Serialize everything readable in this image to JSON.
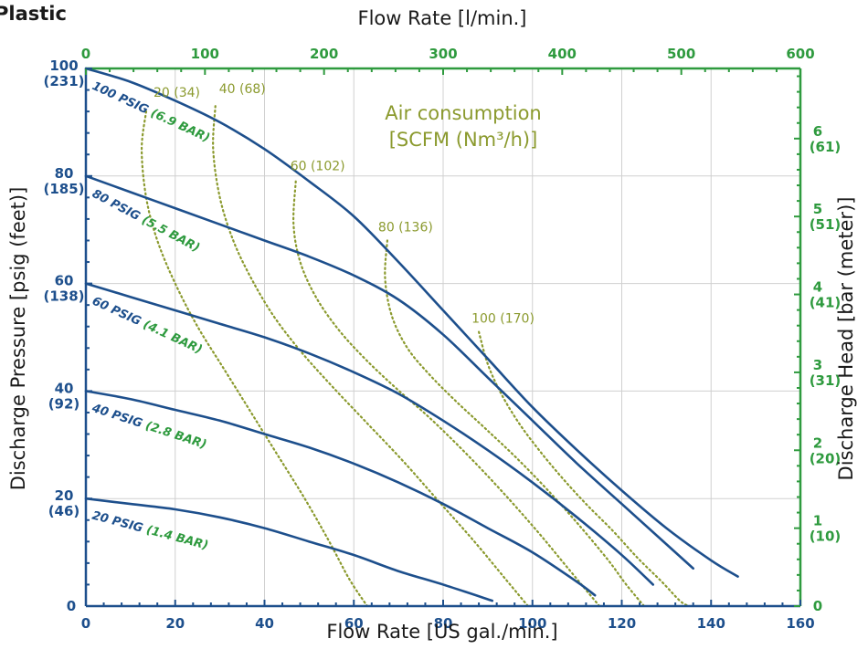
{
  "chart_data": {
    "type": "line",
    "title": "Plastic",
    "x_bottom": {
      "label": "Flow Rate [US gal./min.]",
      "range": [
        0,
        160
      ],
      "ticks": [
        0,
        20,
        40,
        60,
        80,
        100,
        120,
        140,
        160
      ]
    },
    "x_top": {
      "label": "Flow Rate  [l/min.]",
      "range": [
        0,
        600
      ],
      "ticks": [
        0,
        100,
        200,
        300,
        400,
        500,
        600
      ]
    },
    "y_left": {
      "label": "Discharge Pressure [psig (feet)]",
      "range": [
        0,
        100
      ],
      "ticks": [
        {
          "value": 0,
          "label": "0",
          "sub": ""
        },
        {
          "value": 20,
          "label": "20",
          "sub": "(46)"
        },
        {
          "value": 40,
          "label": "40",
          "sub": "(92)"
        },
        {
          "value": 60,
          "label": "60",
          "sub": "(138)"
        },
        {
          "value": 80,
          "label": "80",
          "sub": "(185)"
        },
        {
          "value": 100,
          "label": "100",
          "sub": "(231)"
        }
      ]
    },
    "y_right": {
      "label": "Discharge Head [bar (meter)]",
      "range": [
        0,
        6.9
      ],
      "ticks": [
        {
          "value": 0,
          "label": "0",
          "sub": ""
        },
        {
          "value": 1,
          "label": "1",
          "sub": "(10)"
        },
        {
          "value": 2,
          "label": "2",
          "sub": "(20)"
        },
        {
          "value": 3,
          "label": "3",
          "sub": "(31)"
        },
        {
          "value": 4,
          "label": "4",
          "sub": "(41)"
        },
        {
          "value": 5,
          "label": "5",
          "sub": "(51)"
        },
        {
          "value": 6,
          "label": "6",
          "sub": "(61)"
        }
      ]
    },
    "grid": true,
    "series": [
      {
        "name": "100 PSIG",
        "name_bar": "(6.9 BAR)",
        "x": [
          0,
          10,
          20,
          30,
          40,
          50,
          60,
          70,
          80,
          90,
          100,
          110,
          120,
          130,
          140,
          146
        ],
        "y": [
          100,
          97.5,
          94,
          90,
          85,
          79,
          72.5,
          64,
          55,
          46,
          37,
          29,
          21.5,
          14.5,
          8.5,
          5.5
        ]
      },
      {
        "name": "80 PSIG",
        "name_bar": "(5.5 BAR)",
        "x": [
          0,
          10,
          20,
          30,
          40,
          50,
          60,
          70,
          80,
          90,
          100,
          110,
          120,
          130,
          136
        ],
        "y": [
          80,
          77,
          74,
          71,
          68,
          65,
          61.5,
          57,
          50.5,
          42.5,
          34.5,
          26.5,
          19,
          11.5,
          7
        ]
      },
      {
        "name": "60 PSIG",
        "name_bar": "(4.1 BAR)",
        "x": [
          0,
          10,
          20,
          30,
          40,
          50,
          60,
          70,
          80,
          90,
          100,
          110,
          120,
          127
        ],
        "y": [
          60,
          57.5,
          55,
          52.5,
          50,
          47,
          43.5,
          39.5,
          34.5,
          29,
          23,
          16.5,
          9.5,
          4
        ]
      },
      {
        "name": "40 PSIG",
        "name_bar": "(2.8 BAR)",
        "x": [
          0,
          10,
          20,
          30,
          40,
          50,
          60,
          70,
          80,
          90,
          100,
          110,
          114
        ],
        "y": [
          40,
          38.5,
          36.5,
          34.5,
          32,
          29.5,
          26.5,
          23,
          19,
          14.5,
          10,
          4.5,
          2
        ]
      },
      {
        "name": "20 PSIG",
        "name_bar": "(1.4 BAR)",
        "x": [
          0,
          10,
          20,
          30,
          40,
          50,
          60,
          70,
          80,
          91
        ],
        "y": [
          20,
          19,
          18,
          16.5,
          14.5,
          12,
          9.5,
          6.5,
          4,
          1
        ]
      }
    ],
    "air_consumption": {
      "title_line1": "Air consumption",
      "title_line2": "[SCFM (Nm³/h)]",
      "curves": [
        {
          "label": "20 (34)",
          "x": [
            13.5,
            12.5,
            13.5,
            16,
            20,
            25,
            31,
            37,
            43,
            49,
            54.5,
            59,
            63
          ],
          "y": [
            92,
            85,
            76,
            68,
            60,
            52,
            44,
            36,
            28,
            20,
            12,
            5,
            0
          ]
        },
        {
          "label": "40 (68)",
          "x": [
            29,
            28.5,
            30,
            33,
            37,
            42,
            48,
            55,
            63,
            71,
            79,
            87,
            94,
            99
          ],
          "y": [
            93,
            85,
            76,
            68,
            61,
            54,
            47.5,
            41,
            34,
            27,
            19.5,
            12,
            5,
            0
          ]
        },
        {
          "label": "60 (102)",
          "x": [
            47,
            46.5,
            48,
            51.5,
            56.5,
            62.5,
            69.5,
            77,
            85,
            93,
            101,
            108,
            115
          ],
          "y": [
            79,
            71,
            64,
            57.5,
            51.5,
            46,
            40.5,
            35,
            28.5,
            21.5,
            14,
            7,
            0
          ]
        },
        {
          "label": "80 (136)",
          "x": [
            67.5,
            67,
            68.5,
            72,
            77,
            83,
            89.5,
            96.5,
            103.5,
            110.5,
            117,
            121,
            125
          ],
          "y": [
            68,
            61,
            54,
            48,
            43,
            38,
            33,
            27.5,
            21.5,
            15,
            8.5,
            4,
            0
          ]
        },
        {
          "label": "100 (170)",
          "x": [
            88,
            90,
            93,
            97,
            101.5,
            106.5,
            112,
            118,
            123.5,
            129,
            133,
            135
          ],
          "y": [
            51,
            45,
            39.5,
            34,
            29,
            24,
            19,
            14,
            9,
            4.5,
            1,
            0
          ]
        }
      ]
    }
  }
}
